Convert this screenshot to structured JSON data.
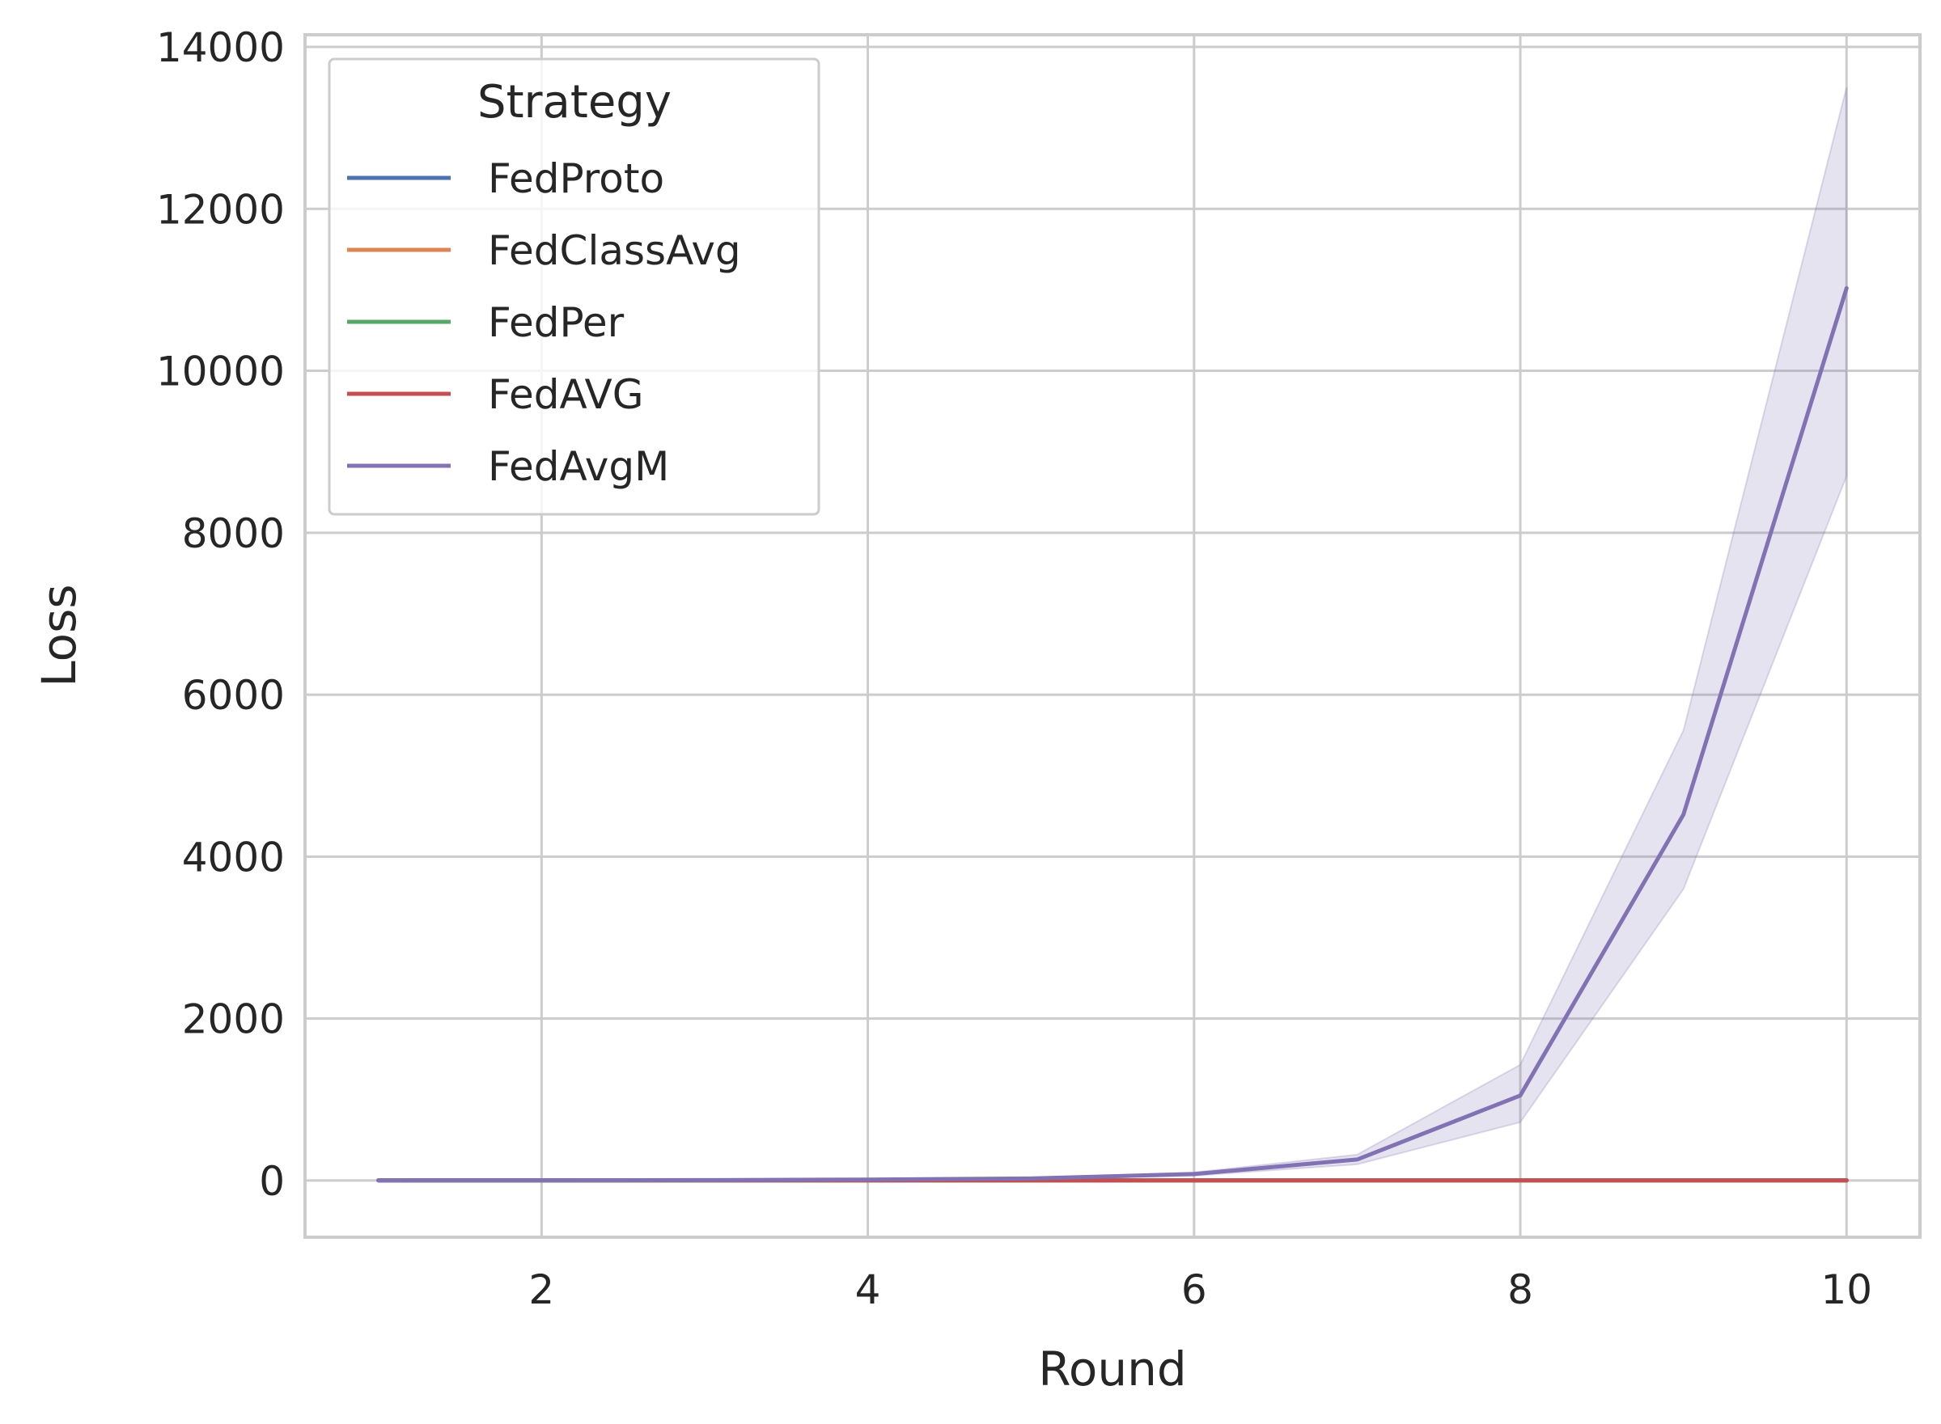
{
  "chart_data": {
    "type": "line",
    "title": "",
    "xlabel": "Round",
    "ylabel": "Loss",
    "xlim": [
      0.55,
      10.45
    ],
    "ylim": [
      -700,
      14150
    ],
    "xticks": [
      2,
      4,
      6,
      8,
      10
    ],
    "xtick_labels": [
      "2",
      "4",
      "6",
      "8",
      "10"
    ],
    "yticks": [
      0,
      2000,
      4000,
      6000,
      8000,
      10000,
      12000,
      14000
    ],
    "ytick_labels": [
      "0",
      "2000",
      "4000",
      "6000",
      "8000",
      "10000",
      "12000",
      "14000"
    ],
    "grid": true,
    "legend": {
      "title": "Strategy",
      "placement": "top-left"
    },
    "x": [
      1,
      2,
      3,
      4,
      5,
      6,
      7,
      8,
      9,
      10
    ],
    "series": [
      {
        "name": "FedProto",
        "color": "#4c72b0",
        "values": [
          2,
          2,
          2,
          2,
          2,
          2,
          2,
          2,
          2,
          2
        ]
      },
      {
        "name": "FedClassAvg",
        "color": "#dd8452",
        "values": [
          2,
          2,
          2,
          2,
          2,
          2,
          2,
          2,
          2,
          2
        ]
      },
      {
        "name": "FedPer",
        "color": "#55a868",
        "values": [
          2,
          2,
          2,
          2,
          2,
          2,
          2,
          2,
          2,
          2
        ]
      },
      {
        "name": "FedAVG",
        "color": "#c44e52",
        "values": [
          2,
          2,
          2,
          2,
          2,
          2,
          2,
          2,
          2,
          2
        ]
      },
      {
        "name": "FedAvgM",
        "color": "#8172b3",
        "values": [
          2,
          3,
          5,
          12,
          25,
          80,
          260,
          1050,
          4520,
          11020
        ],
        "ci_lower": [
          2,
          3,
          4,
          9,
          18,
          60,
          200,
          720,
          3600,
          8700
        ],
        "ci_upper": [
          2,
          4,
          6,
          15,
          32,
          100,
          320,
          1430,
          5560,
          13500
        ]
      }
    ]
  }
}
